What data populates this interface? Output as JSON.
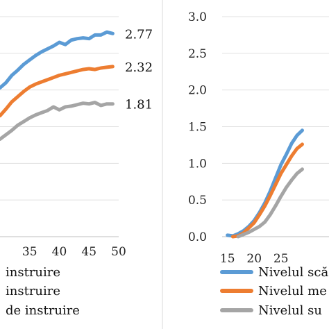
{
  "chart_data": [
    {
      "type": "line",
      "xlim": [
        30,
        50
      ],
      "ylim": [
        0,
        3.0
      ],
      "x_ticks": [
        "35",
        "40",
        "45",
        "50"
      ],
      "grid": true,
      "legend_position": "bottom",
      "legend": [
        "instruire",
        "instruire",
        "de instruire"
      ],
      "end_labels": [
        "2.77",
        "2.32",
        "1.81"
      ],
      "series": [
        {
          "color": "#5B9BD5",
          "x": [
            30,
            31,
            32,
            33,
            34,
            35,
            36,
            37,
            38,
            39,
            40,
            41,
            42,
            43,
            44,
            45,
            46,
            47,
            48,
            49
          ],
          "y": [
            2.03,
            2.1,
            2.2,
            2.27,
            2.35,
            2.41,
            2.47,
            2.52,
            2.56,
            2.6,
            2.65,
            2.62,
            2.68,
            2.7,
            2.71,
            2.7,
            2.75,
            2.75,
            2.79,
            2.77
          ]
        },
        {
          "color": "#ED7D31",
          "x": [
            30,
            31,
            32,
            33,
            34,
            35,
            36,
            37,
            38,
            39,
            40,
            41,
            42,
            43,
            44,
            45,
            46,
            47,
            48,
            49
          ],
          "y": [
            1.65,
            1.74,
            1.84,
            1.91,
            1.98,
            2.04,
            2.08,
            2.11,
            2.14,
            2.17,
            2.2,
            2.22,
            2.24,
            2.26,
            2.28,
            2.29,
            2.28,
            2.3,
            2.31,
            2.32
          ]
        },
        {
          "color": "#A5A5A5",
          "x": [
            30,
            31,
            32,
            33,
            34,
            35,
            36,
            37,
            38,
            39,
            40,
            41,
            42,
            43,
            44,
            45,
            46,
            47,
            48,
            49
          ],
          "y": [
            1.33,
            1.39,
            1.45,
            1.52,
            1.57,
            1.62,
            1.66,
            1.69,
            1.72,
            1.77,
            1.73,
            1.77,
            1.78,
            1.8,
            1.82,
            1.81,
            1.83,
            1.79,
            1.81,
            1.81
          ]
        }
      ]
    },
    {
      "type": "line",
      "xlim": [
        14,
        34
      ],
      "ylim": [
        0,
        3.0
      ],
      "x_ticks": [
        "15",
        "20",
        "25"
      ],
      "y_ticks": [
        "0.0",
        "0.5",
        "1.0",
        "1.5",
        "2.0",
        "2.5",
        "3.0"
      ],
      "grid": true,
      "legend_position": "bottom",
      "legend": [
        "Nivelul scă",
        "Nivelul me",
        "Nivelul su"
      ],
      "series": [
        {
          "color": "#5B9BD5",
          "x": [
            15,
            16,
            17,
            18,
            19,
            20,
            21,
            22,
            23,
            24,
            25,
            26,
            27,
            28,
            29
          ],
          "y": [
            0.02,
            0.01,
            0.04,
            0.08,
            0.14,
            0.22,
            0.33,
            0.46,
            0.62,
            0.8,
            0.98,
            1.12,
            1.27,
            1.38,
            1.45
          ]
        },
        {
          "color": "#ED7D31",
          "x": [
            16,
            17,
            18,
            19,
            20,
            21,
            22,
            23,
            24,
            25,
            26,
            27,
            28,
            29
          ],
          "y": [
            0.0,
            0.01,
            0.05,
            0.12,
            0.19,
            0.3,
            0.42,
            0.56,
            0.71,
            0.86,
            0.98,
            1.1,
            1.2,
            1.26
          ]
        },
        {
          "color": "#A5A5A5",
          "x": [
            17,
            18,
            19,
            20,
            21,
            22,
            23,
            24,
            25,
            26,
            27,
            28,
            29
          ],
          "y": [
            0.0,
            0.03,
            0.06,
            0.1,
            0.14,
            0.2,
            0.3,
            0.42,
            0.55,
            0.67,
            0.77,
            0.86,
            0.92
          ]
        }
      ]
    }
  ]
}
